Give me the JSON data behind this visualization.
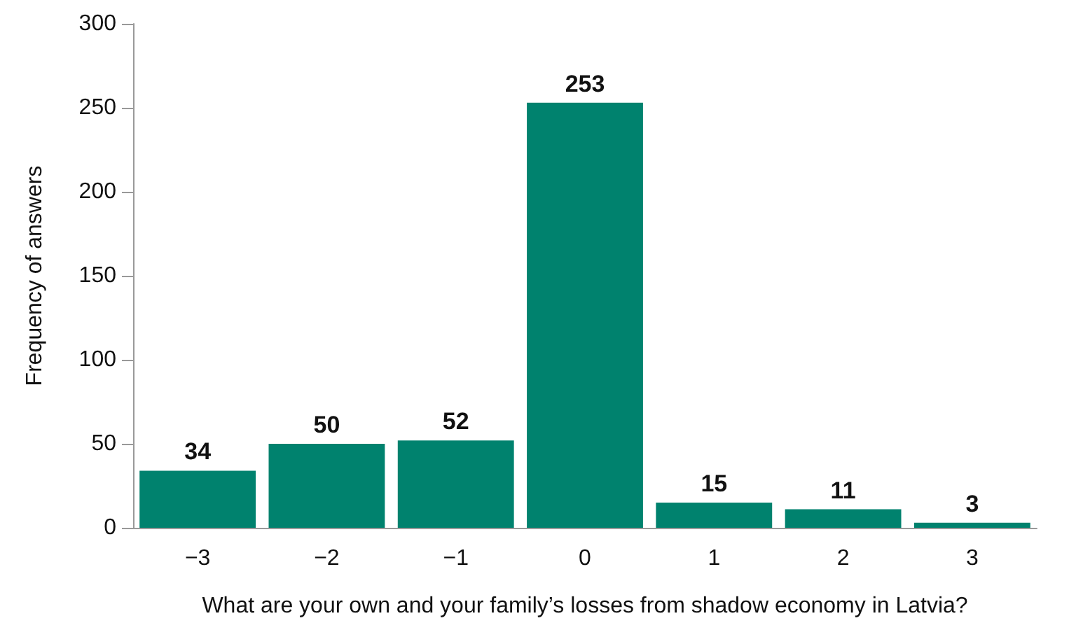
{
  "chart_data": {
    "type": "bar",
    "xlabel": "What are your own and your family’s losses from shadow economy in Latvia?",
    "ylabel": "Frequency of answers",
    "categories": [
      "−3",
      "−2",
      "−1",
      "0",
      "1",
      "2",
      "3"
    ],
    "values": [
      34,
      50,
      52,
      253,
      15,
      11,
      3
    ],
    "color": "#00826e",
    "ylim": [
      0,
      300
    ],
    "yticks": [
      0,
      50,
      100,
      150,
      200,
      250,
      300
    ],
    "grid": false,
    "data_labels": true
  }
}
